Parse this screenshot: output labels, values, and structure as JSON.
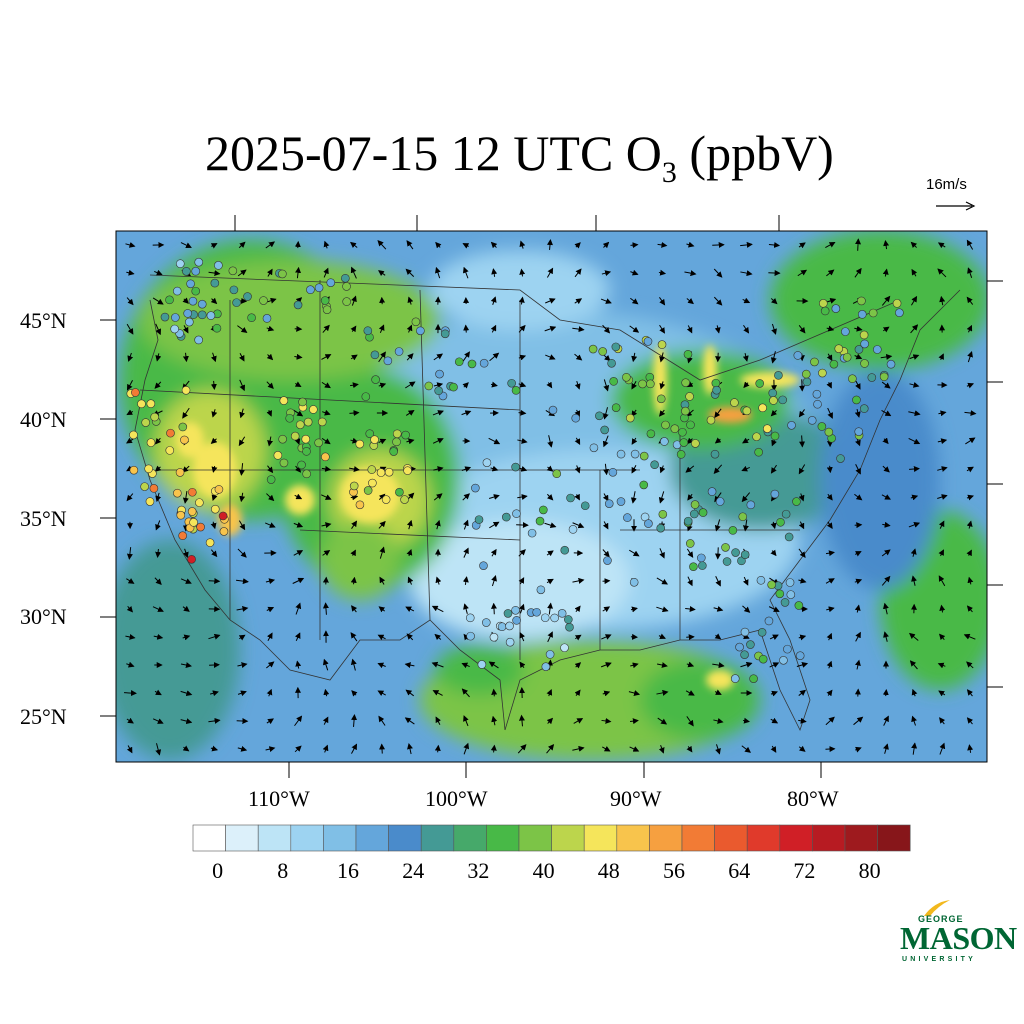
{
  "title": {
    "main": "2025-07-15 12 UTC O",
    "subscript": "3",
    "suffix": " (ppbV)"
  },
  "wind_reference": {
    "label": "16m/s"
  },
  "latitude_labels": [
    "45°N",
    "40°N",
    "35°N",
    "30°N",
    "25°N"
  ],
  "longitude_labels": [
    "110°W",
    "100°W",
    "90°W",
    "80°W"
  ],
  "colorbar": {
    "labels": [
      "0",
      "8",
      "16",
      "24",
      "32",
      "40",
      "48",
      "56",
      "64",
      "72",
      "80"
    ],
    "colors": [
      "#ffffff",
      "#dcf0fa",
      "#bde4f6",
      "#9dd3f1",
      "#80bfe6",
      "#64a6db",
      "#4a8bcb",
      "#449a95",
      "#46a96a",
      "#48b947",
      "#7cc447",
      "#bcd54c",
      "#f5e55b",
      "#f8c44c",
      "#f6a040",
      "#f27b35",
      "#ea5a2e",
      "#e03a2b",
      "#d01f26",
      "#b71b22",
      "#9e1a1e",
      "#87161a"
    ]
  },
  "logo": {
    "line1": "GEORGE",
    "line2": "MASON",
    "line3": "UNIVERSITY"
  }
}
